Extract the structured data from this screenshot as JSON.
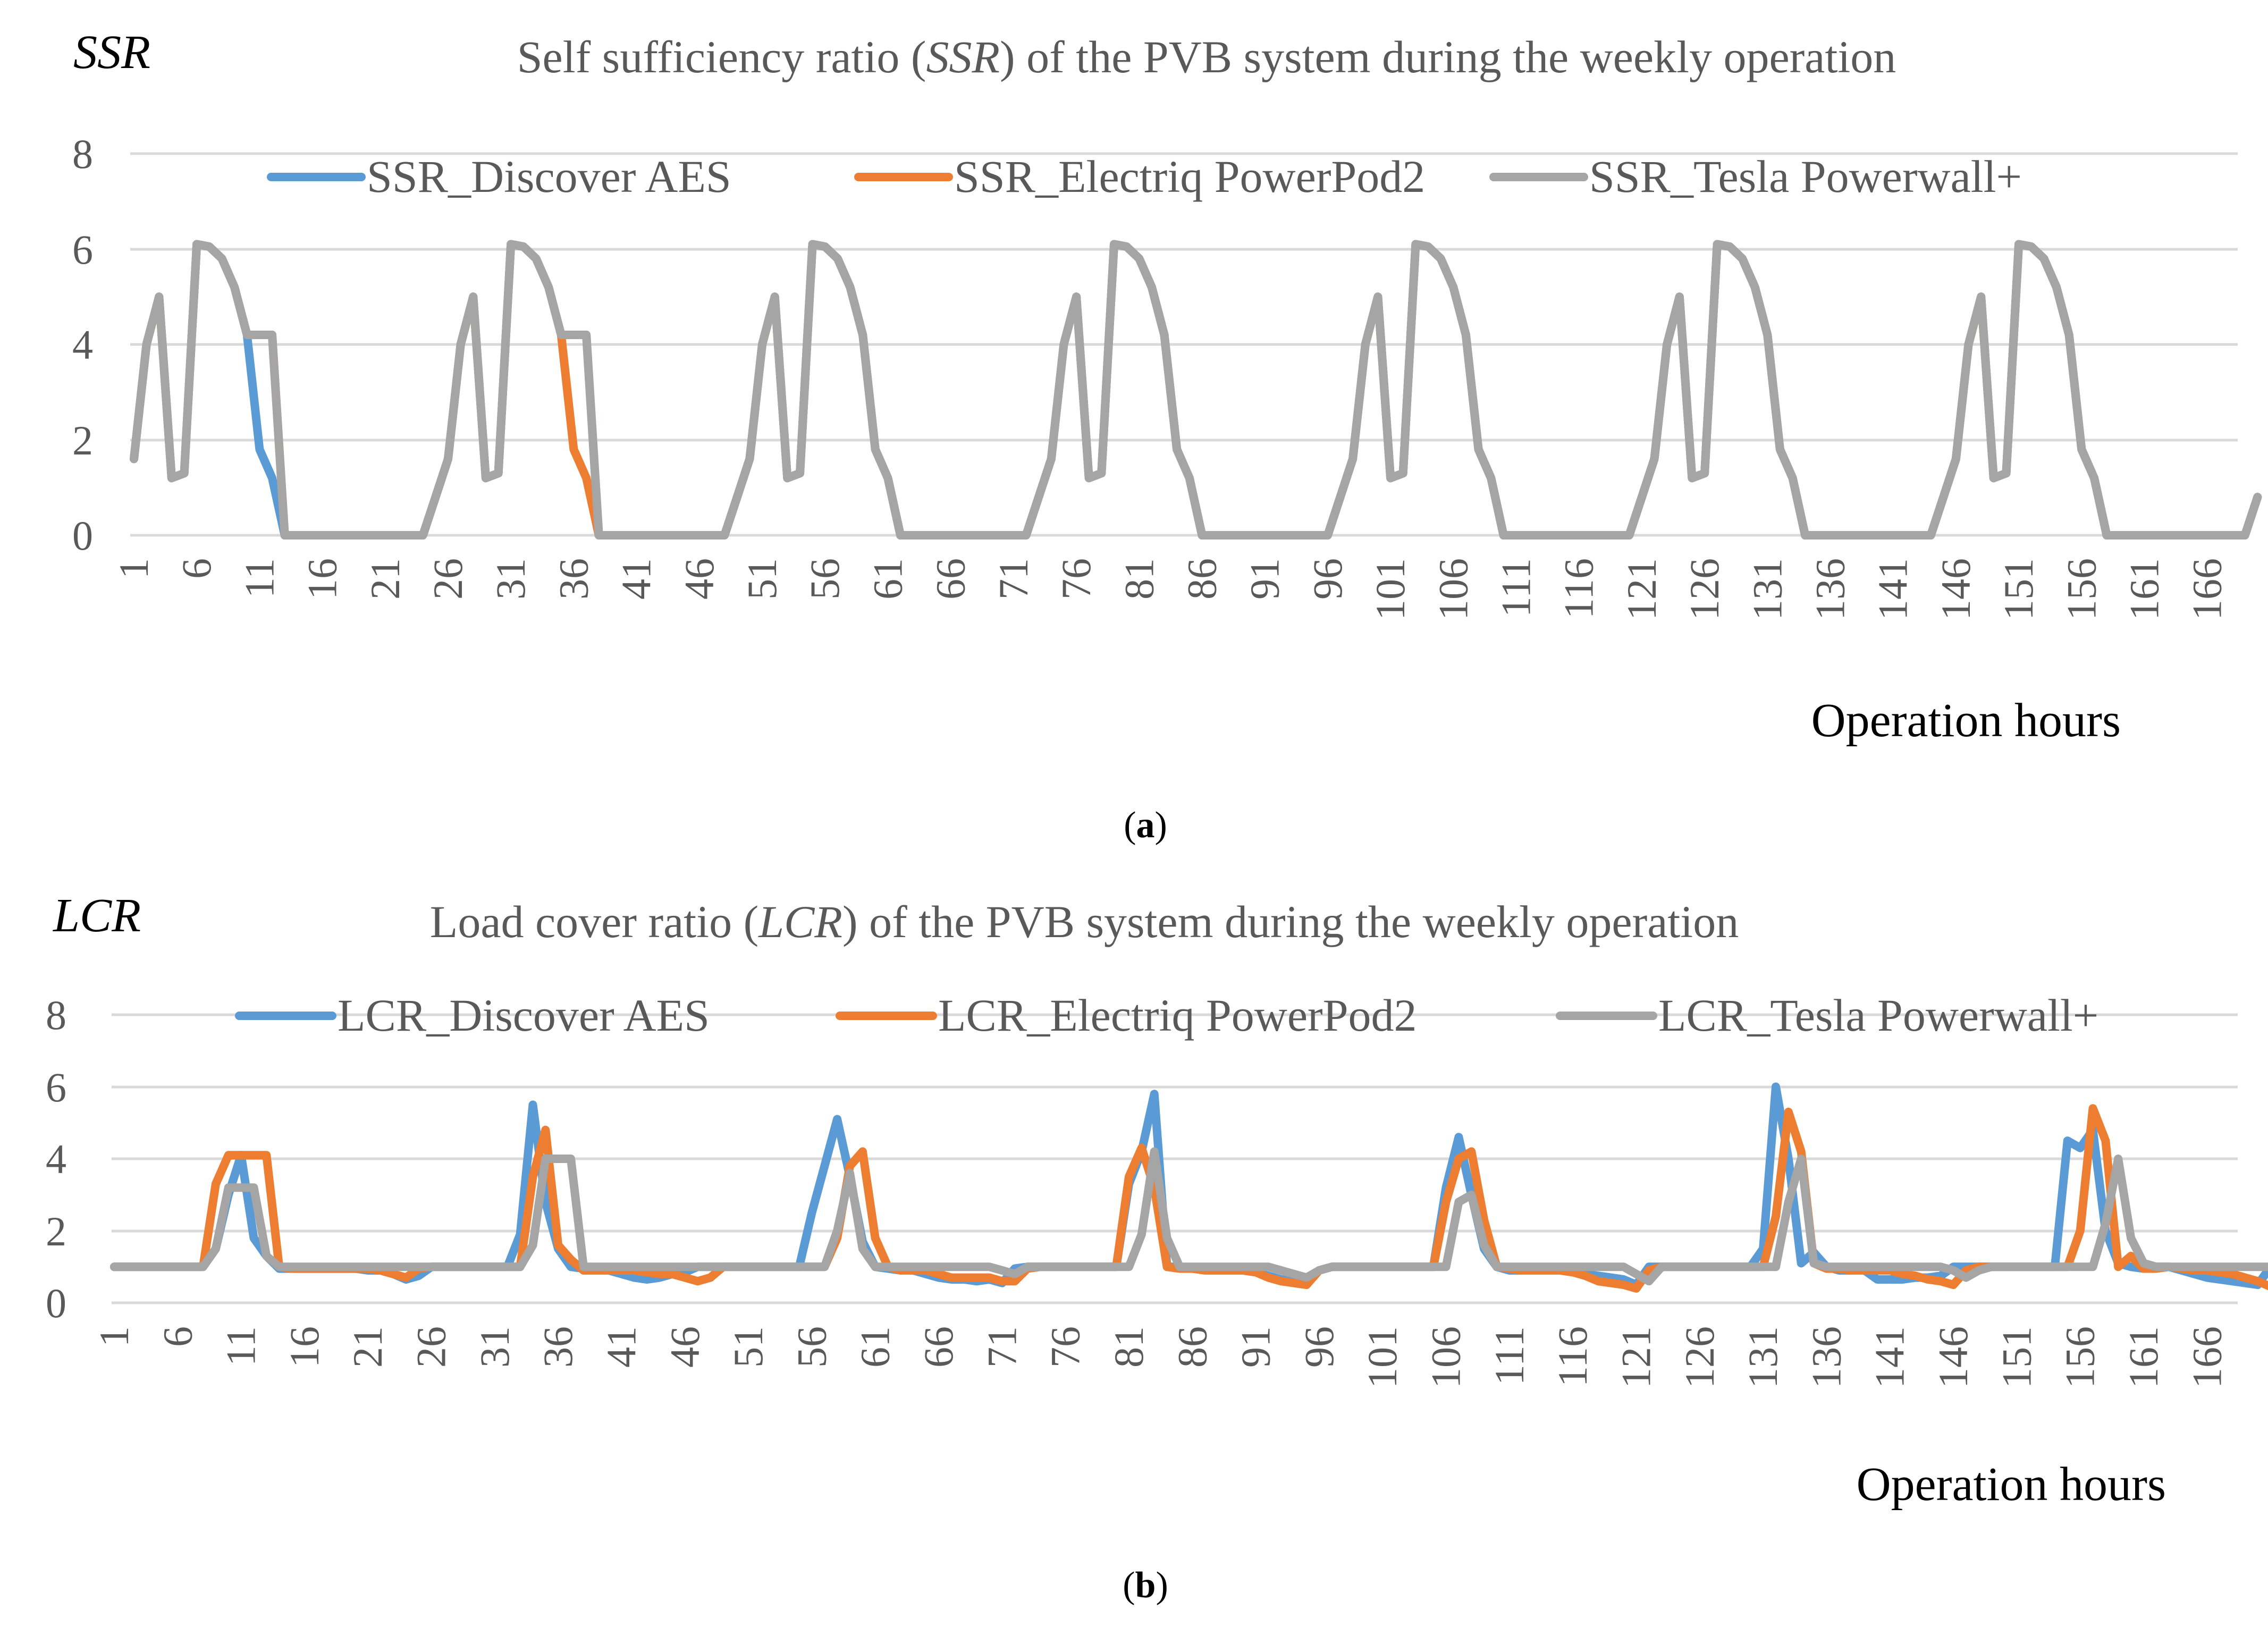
{
  "chart_data": [
    {
      "type": "line",
      "panel_label_prefix": "(",
      "panel_label_letter": "a",
      "panel_label_suffix": ")",
      "title_parts": [
        "Self sufficiency ratio (",
        "SSR",
        ") of the PVB system during the weekly operation"
      ],
      "ylabel": "SSR",
      "xlabel": "Operation hours",
      "ylim": [
        0,
        8
      ],
      "yticks": [
        "0",
        "2",
        "4",
        "6",
        "8"
      ],
      "grid": true,
      "legend_position": "top",
      "x_range": [
        1,
        168
      ],
      "xtick_step": 5,
      "series": [
        {
          "name": "SSR_Discover AES",
          "color": "#5B9BD5",
          "values": [
            1.6,
            4.0,
            5.0,
            1.2,
            1.3,
            6.1,
            6.05,
            5.8,
            5.2,
            4.2,
            1.8,
            1.2,
            0,
            0,
            0,
            0,
            0,
            0,
            0,
            0,
            0,
            0,
            0,
            0,
            0.8,
            1.6,
            4.0,
            5.0,
            1.2,
            1.3,
            6.1,
            6.05,
            5.8,
            5.2,
            4.2,
            4.2,
            4.2,
            0,
            0,
            0,
            0,
            0,
            0,
            0,
            0,
            0,
            0,
            0,
            0.8,
            1.6,
            4.0,
            5.0,
            1.2,
            1.3,
            6.1,
            6.05,
            5.8,
            5.2,
            4.2,
            1.8,
            1.2,
            0,
            0,
            0,
            0,
            0,
            0,
            0,
            0,
            0,
            0,
            0,
            0.8,
            1.6,
            4.0,
            5.0,
            1.2,
            1.3,
            6.1,
            6.05,
            5.8,
            5.2,
            4.2,
            1.8,
            1.2,
            0,
            0,
            0,
            0,
            0,
            0,
            0,
            0,
            0,
            0,
            0,
            0.8,
            1.6,
            4.0,
            5.0,
            1.2,
            1.3,
            6.1,
            6.05,
            5.8,
            5.2,
            4.2,
            1.8,
            1.2,
            0,
            0,
            0,
            0,
            0,
            0,
            0,
            0,
            0,
            0,
            0,
            0.8,
            1.6,
            4.0,
            5.0,
            1.2,
            1.3,
            6.1,
            6.05,
            5.8,
            5.2,
            4.2,
            1.8,
            1.2,
            0,
            0,
            0,
            0,
            0,
            0,
            0,
            0,
            0,
            0,
            0,
            0.8,
            1.6,
            4.0,
            5.0,
            1.2,
            1.3,
            6.1,
            6.05,
            5.8,
            5.2,
            4.2,
            1.8,
            1.2,
            0,
            0,
            0,
            0,
            0,
            0,
            0,
            0,
            0,
            0,
            0,
            0,
            0.8
          ]
        },
        {
          "name": "SSR_Electriq PowerPod2",
          "color": "#ED7D31",
          "values": [
            1.6,
            4.0,
            5.0,
            1.2,
            1.3,
            6.1,
            6.05,
            5.8,
            5.2,
            4.2,
            4.2,
            4.2,
            0,
            0,
            0,
            0,
            0,
            0,
            0,
            0,
            0,
            0,
            0,
            0,
            0.8,
            1.6,
            4.0,
            5.0,
            1.2,
            1.3,
            6.1,
            6.05,
            5.8,
            5.2,
            4.2,
            1.8,
            1.2,
            0,
            0,
            0,
            0,
            0,
            0,
            0,
            0,
            0,
            0,
            0,
            0.8,
            1.6,
            4.0,
            5.0,
            1.2,
            1.3,
            6.1,
            6.05,
            5.8,
            5.2,
            4.2,
            1.8,
            1.2,
            0,
            0,
            0,
            0,
            0,
            0,
            0,
            0,
            0,
            0,
            0,
            0.8,
            1.6,
            4.0,
            5.0,
            1.2,
            1.3,
            6.1,
            6.05,
            5.8,
            5.2,
            4.2,
            1.8,
            1.2,
            0,
            0,
            0,
            0,
            0,
            0,
            0,
            0,
            0,
            0,
            0,
            0.8,
            1.6,
            4.0,
            5.0,
            1.2,
            1.3,
            6.1,
            6.05,
            5.8,
            5.2,
            4.2,
            1.8,
            1.2,
            0,
            0,
            0,
            0,
            0,
            0,
            0,
            0,
            0,
            0,
            0,
            0.8,
            1.6,
            4.0,
            5.0,
            1.2,
            1.3,
            6.1,
            6.05,
            5.8,
            5.2,
            4.2,
            1.8,
            1.2,
            0,
            0,
            0,
            0,
            0,
            0,
            0,
            0,
            0,
            0,
            0,
            0.8,
            1.6,
            4.0,
            5.0,
            1.2,
            1.3,
            6.1,
            6.05,
            5.8,
            5.2,
            4.2,
            1.8,
            1.2,
            0,
            0,
            0,
            0,
            0,
            0,
            0,
            0,
            0,
            0,
            0,
            0,
            0.8
          ]
        },
        {
          "name": "SSR_Tesla Powerwall+",
          "color": "#A5A5A5",
          "values": [
            1.6,
            4.0,
            5.0,
            1.2,
            1.3,
            6.1,
            6.05,
            5.8,
            5.2,
            4.2,
            4.2,
            4.2,
            0,
            0,
            0,
            0,
            0,
            0,
            0,
            0,
            0,
            0,
            0,
            0,
            0.8,
            1.6,
            4.0,
            5.0,
            1.2,
            1.3,
            6.1,
            6.05,
            5.8,
            5.2,
            4.2,
            4.2,
            4.2,
            0,
            0,
            0,
            0,
            0,
            0,
            0,
            0,
            0,
            0,
            0,
            0.8,
            1.6,
            4.0,
            5.0,
            1.2,
            1.3,
            6.1,
            6.05,
            5.8,
            5.2,
            4.2,
            1.8,
            1.2,
            0,
            0,
            0,
            0,
            0,
            0,
            0,
            0,
            0,
            0,
            0,
            0.8,
            1.6,
            4.0,
            5.0,
            1.2,
            1.3,
            6.1,
            6.05,
            5.8,
            5.2,
            4.2,
            1.8,
            1.2,
            0,
            0,
            0,
            0,
            0,
            0,
            0,
            0,
            0,
            0,
            0,
            0.8,
            1.6,
            4.0,
            5.0,
            1.2,
            1.3,
            6.1,
            6.05,
            5.8,
            5.2,
            4.2,
            1.8,
            1.2,
            0,
            0,
            0,
            0,
            0,
            0,
            0,
            0,
            0,
            0,
            0,
            0.8,
            1.6,
            4.0,
            5.0,
            1.2,
            1.3,
            6.1,
            6.05,
            5.8,
            5.2,
            4.2,
            1.8,
            1.2,
            0,
            0,
            0,
            0,
            0,
            0,
            0,
            0,
            0,
            0,
            0,
            0.8,
            1.6,
            4.0,
            5.0,
            1.2,
            1.3,
            6.1,
            6.05,
            5.8,
            5.2,
            4.2,
            1.8,
            1.2,
            0,
            0,
            0,
            0,
            0,
            0,
            0,
            0,
            0,
            0,
            0,
            0,
            0.8
          ]
        }
      ]
    },
    {
      "type": "line",
      "panel_label_prefix": "(",
      "panel_label_letter": "b",
      "panel_label_suffix": ")",
      "title_parts": [
        "Load cover ratio (",
        "LCR",
        ") of the PVB system during the weekly operation"
      ],
      "ylabel": "LCR",
      "xlabel": "Operation hours",
      "ylim": [
        0,
        8
      ],
      "yticks": [
        "0",
        "2",
        "4",
        "6",
        "8"
      ],
      "grid": true,
      "legend_position": "top",
      "x_range": [
        1,
        168
      ],
      "xtick_step": 5,
      "series": [
        {
          "name": "LCR_Discover AES",
          "color": "#5B9BD5",
          "values": [
            1,
            1,
            1,
            1,
            1,
            1,
            1,
            1,
            1.5,
            3.0,
            4.1,
            1.8,
            1.3,
            0.95,
            0.95,
            0.95,
            0.95,
            0.95,
            0.95,
            0.95,
            0.9,
            0.9,
            0.8,
            0.65,
            0.75,
            1,
            1,
            1,
            1,
            1,
            1,
            1,
            1.9,
            5.5,
            2.8,
            1.5,
            1.0,
            0.95,
            0.9,
            0.9,
            0.8,
            0.7,
            0.65,
            0.7,
            0.8,
            0.85,
            1,
            1,
            1,
            1,
            1,
            1,
            1,
            1,
            1,
            2.5,
            3.8,
            5.1,
            3.5,
            1.7,
            1,
            0.95,
            0.9,
            0.9,
            0.8,
            0.7,
            0.65,
            0.65,
            0.6,
            0.65,
            0.55,
            0.95,
            1,
            1,
            1,
            1,
            1,
            1,
            1,
            1,
            3.3,
            4.2,
            5.8,
            1.0,
            1.0,
            0.95,
            0.95,
            0.9,
            0.95,
            0.9,
            0.85,
            0.75,
            0.65,
            0.6,
            0.55,
            0.9,
            1,
            1,
            1,
            1,
            1,
            1,
            1,
            1,
            1,
            3.2,
            4.6,
            3.0,
            1.5,
            1.0,
            0.9,
            0.9,
            0.9,
            0.9,
            0.9,
            0.85,
            0.8,
            0.75,
            0.7,
            0.65,
            0.5,
            1,
            1,
            1,
            1,
            1,
            1,
            1,
            1,
            1,
            1.5,
            6.0,
            4.0,
            1.1,
            1.4,
            1.0,
            0.9,
            0.9,
            0.9,
            0.65,
            0.65,
            0.65,
            0.7,
            0.7,
            0.75,
            1.0,
            1,
            1,
            1,
            1,
            1,
            1,
            1,
            1,
            4.5,
            4.3,
            4.8,
            2.0,
            1.1,
            1.0,
            0.95,
            1.0,
            1.0,
            0.9,
            0.8,
            0.7,
            0.65,
            0.6,
            0.55,
            0.5,
            1.0
          ]
        },
        {
          "name": "LCR_Electriq PowerPod2",
          "color": "#ED7D31",
          "values": [
            1,
            1,
            1,
            1,
            1,
            1,
            1,
            1,
            3.3,
            4.1,
            4.1,
            4.1,
            4.1,
            1,
            0.95,
            0.95,
            0.95,
            0.95,
            0.95,
            0.95,
            0.95,
            0.9,
            0.8,
            0.7,
            0.95,
            1,
            1,
            1,
            1,
            1,
            1,
            1,
            1,
            3.5,
            4.8,
            1.6,
            1.2,
            0.9,
            0.9,
            0.9,
            0.9,
            0.9,
            0.85,
            0.8,
            0.8,
            0.7,
            0.6,
            0.7,
            1,
            1,
            1,
            1,
            1,
            1,
            1,
            1,
            1,
            1.8,
            3.8,
            4.2,
            1.8,
            1.0,
            0.9,
            0.9,
            0.9,
            0.8,
            0.7,
            0.7,
            0.7,
            0.7,
            0.6,
            0.6,
            0.95,
            1,
            1,
            1,
            1,
            1,
            1,
            1,
            3.5,
            4.3,
            3.2,
            1.0,
            0.95,
            0.95,
            0.9,
            0.9,
            0.9,
            0.9,
            0.85,
            0.7,
            0.6,
            0.55,
            0.5,
            0.9,
            1,
            1,
            1,
            1,
            1,
            1,
            1,
            1,
            1,
            2.8,
            4.0,
            4.2,
            2.3,
            1.0,
            0.95,
            0.9,
            0.9,
            0.9,
            0.9,
            0.85,
            0.75,
            0.6,
            0.55,
            0.5,
            0.4,
            0.9,
            1,
            1,
            1,
            1,
            1,
            1,
            1,
            1,
            1,
            2.4,
            5.3,
            4.2,
            1.1,
            0.95,
            0.95,
            0.9,
            0.9,
            0.9,
            0.9,
            0.8,
            0.75,
            0.65,
            0.6,
            0.5,
            0.9,
            1,
            1,
            1,
            1,
            1,
            1,
            1,
            1,
            2.0,
            5.4,
            4.5,
            1.0,
            1.3,
            0.95,
            0.95,
            1.0,
            0.95,
            0.9,
            0.9,
            0.85,
            0.8,
            0.7,
            0.6,
            0.45,
            0.6
          ]
        },
        {
          "name": "LCR_Tesla Powerwall+",
          "color": "#A5A5A5",
          "values": [
            1,
            1,
            1,
            1,
            1,
            1,
            1,
            1,
            1.5,
            3.2,
            3.2,
            3.2,
            1.3,
            1,
            1,
            1,
            1,
            1,
            1,
            1,
            1,
            1,
            1,
            1,
            1,
            1,
            1,
            1,
            1,
            1,
            1,
            1,
            1,
            1.6,
            4.0,
            4.0,
            4.0,
            1.0,
            1,
            1,
            1,
            1,
            1,
            1,
            1,
            1,
            1,
            1,
            1,
            1,
            1,
            1,
            1,
            1,
            1,
            1,
            1,
            2.0,
            3.6,
            1.5,
            1,
            1,
            1,
            1,
            1,
            1,
            1,
            1,
            1,
            1,
            0.9,
            0.8,
            1,
            1,
            1,
            1,
            1,
            1,
            1,
            1,
            1,
            1.9,
            4.2,
            1.8,
            1,
            1,
            1,
            1,
            1,
            1,
            1,
            1,
            0.9,
            0.8,
            0.7,
            0.9,
            1,
            1,
            1,
            1,
            1,
            1,
            1,
            1,
            1,
            1,
            2.8,
            3.0,
            1.6,
            1.0,
            1,
            1,
            1,
            1,
            1,
            1,
            1,
            1,
            1,
            1,
            0.8,
            0.6,
            1,
            1,
            1,
            1,
            1,
            1,
            1,
            1,
            1,
            1,
            2.8,
            4.0,
            1.1,
            1.0,
            1,
            1,
            1,
            1,
            1,
            1,
            1,
            1,
            1,
            0.9,
            0.7,
            0.9,
            1,
            1,
            1,
            1,
            1,
            1,
            1,
            1,
            1,
            2.2,
            4.0,
            1.8,
            1.1,
            1,
            1,
            1,
            1,
            1,
            1,
            1,
            1,
            1,
            1,
            0.9,
            0.8
          ]
        }
      ]
    }
  ]
}
